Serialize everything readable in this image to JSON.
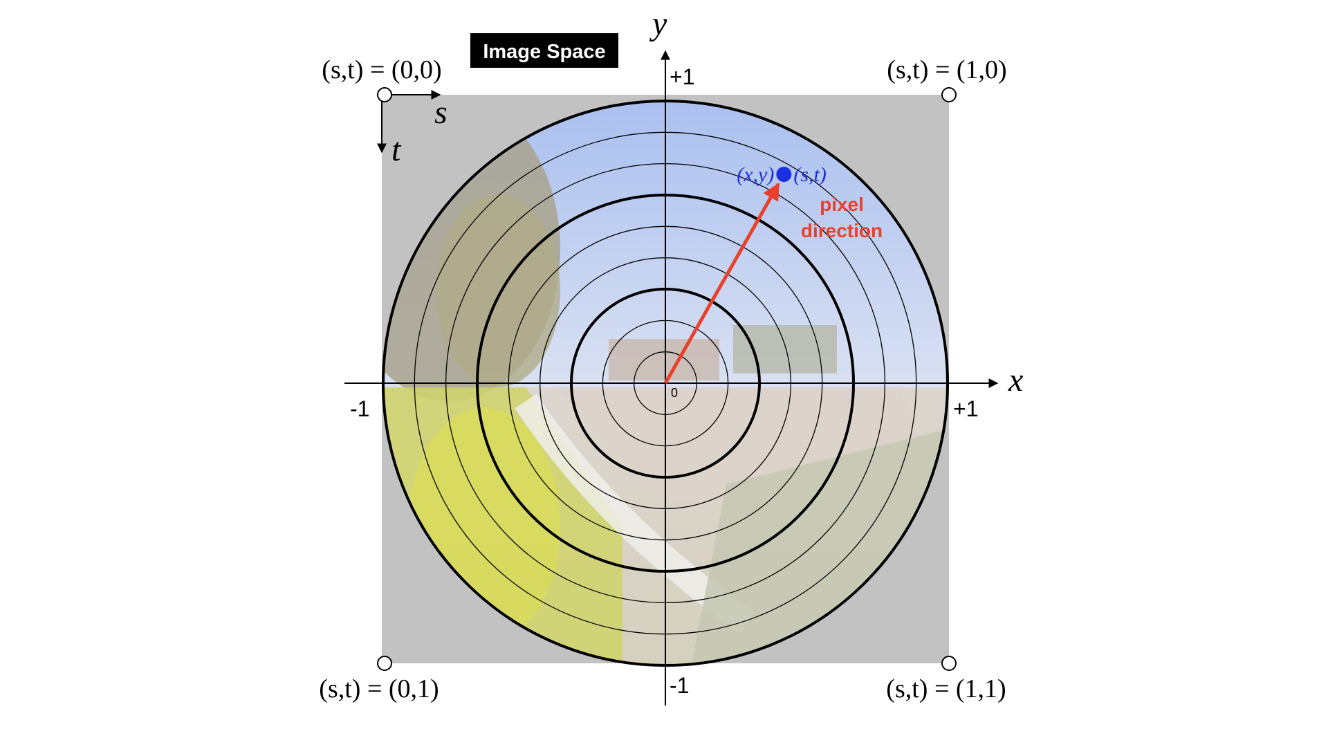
{
  "title_badge": "Image Space",
  "axes": {
    "x_label": "x",
    "y_label": "y",
    "x_neg": "-1",
    "x_pos": "+1",
    "y_pos": "+1",
    "y_neg": "-1",
    "origin": "0"
  },
  "image_axes": {
    "s_label": "s",
    "t_label": "t"
  },
  "corners": {
    "top_left": "(s,t) = (0,0)",
    "top_right": "(s,t) = (1,0)",
    "bottom_left": "(s,t) = (0,1)",
    "bottom_right": "(s,t) = (1,1)"
  },
  "point": {
    "xy_label": "(x,y)",
    "st_label": "(s,t)",
    "x": 0.42,
    "y": 0.74,
    "color": "#1a2fe0"
  },
  "direction_label": {
    "line1": "pixel",
    "line2": "direction",
    "color": "#e8402a"
  },
  "rings": {
    "radii": [
      0.1111,
      0.2222,
      0.3333,
      0.4444,
      0.5556,
      0.6667,
      0.7778,
      0.8889,
      1.0
    ],
    "thick": [
      0.3333,
      0.6667,
      1.0
    ]
  },
  "colors": {
    "image_bg": "#c2c2c2",
    "sky": "#b8c8ee",
    "foliage": "#d2d37a",
    "ground": "#d8d0c8"
  }
}
